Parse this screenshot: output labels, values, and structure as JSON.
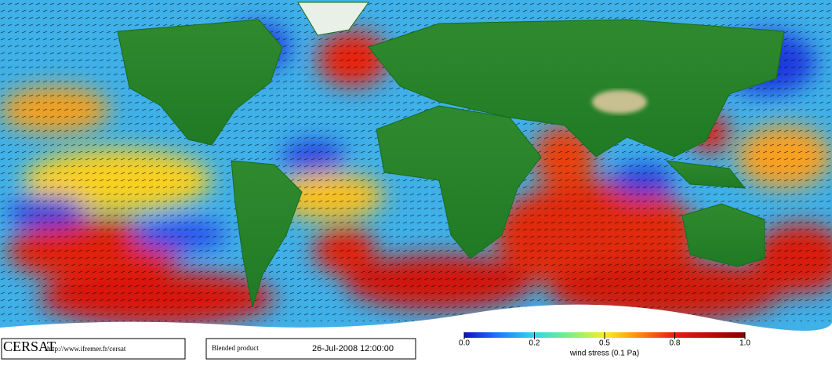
{
  "footer": {
    "logo": "CERSAT",
    "url": "http://www.ifremer.fr/cersat",
    "product": "Blended product",
    "date": "26-Jul-2008 12:00:00"
  },
  "colorbar": {
    "label": "wind stress (0.1 Pa)",
    "ticks": [
      {
        "value": 0,
        "label": "0.0"
      },
      0.2,
      0.5,
      0.8,
      {
        "value": 1,
        "label": "1.0"
      }
    ]
  }
}
